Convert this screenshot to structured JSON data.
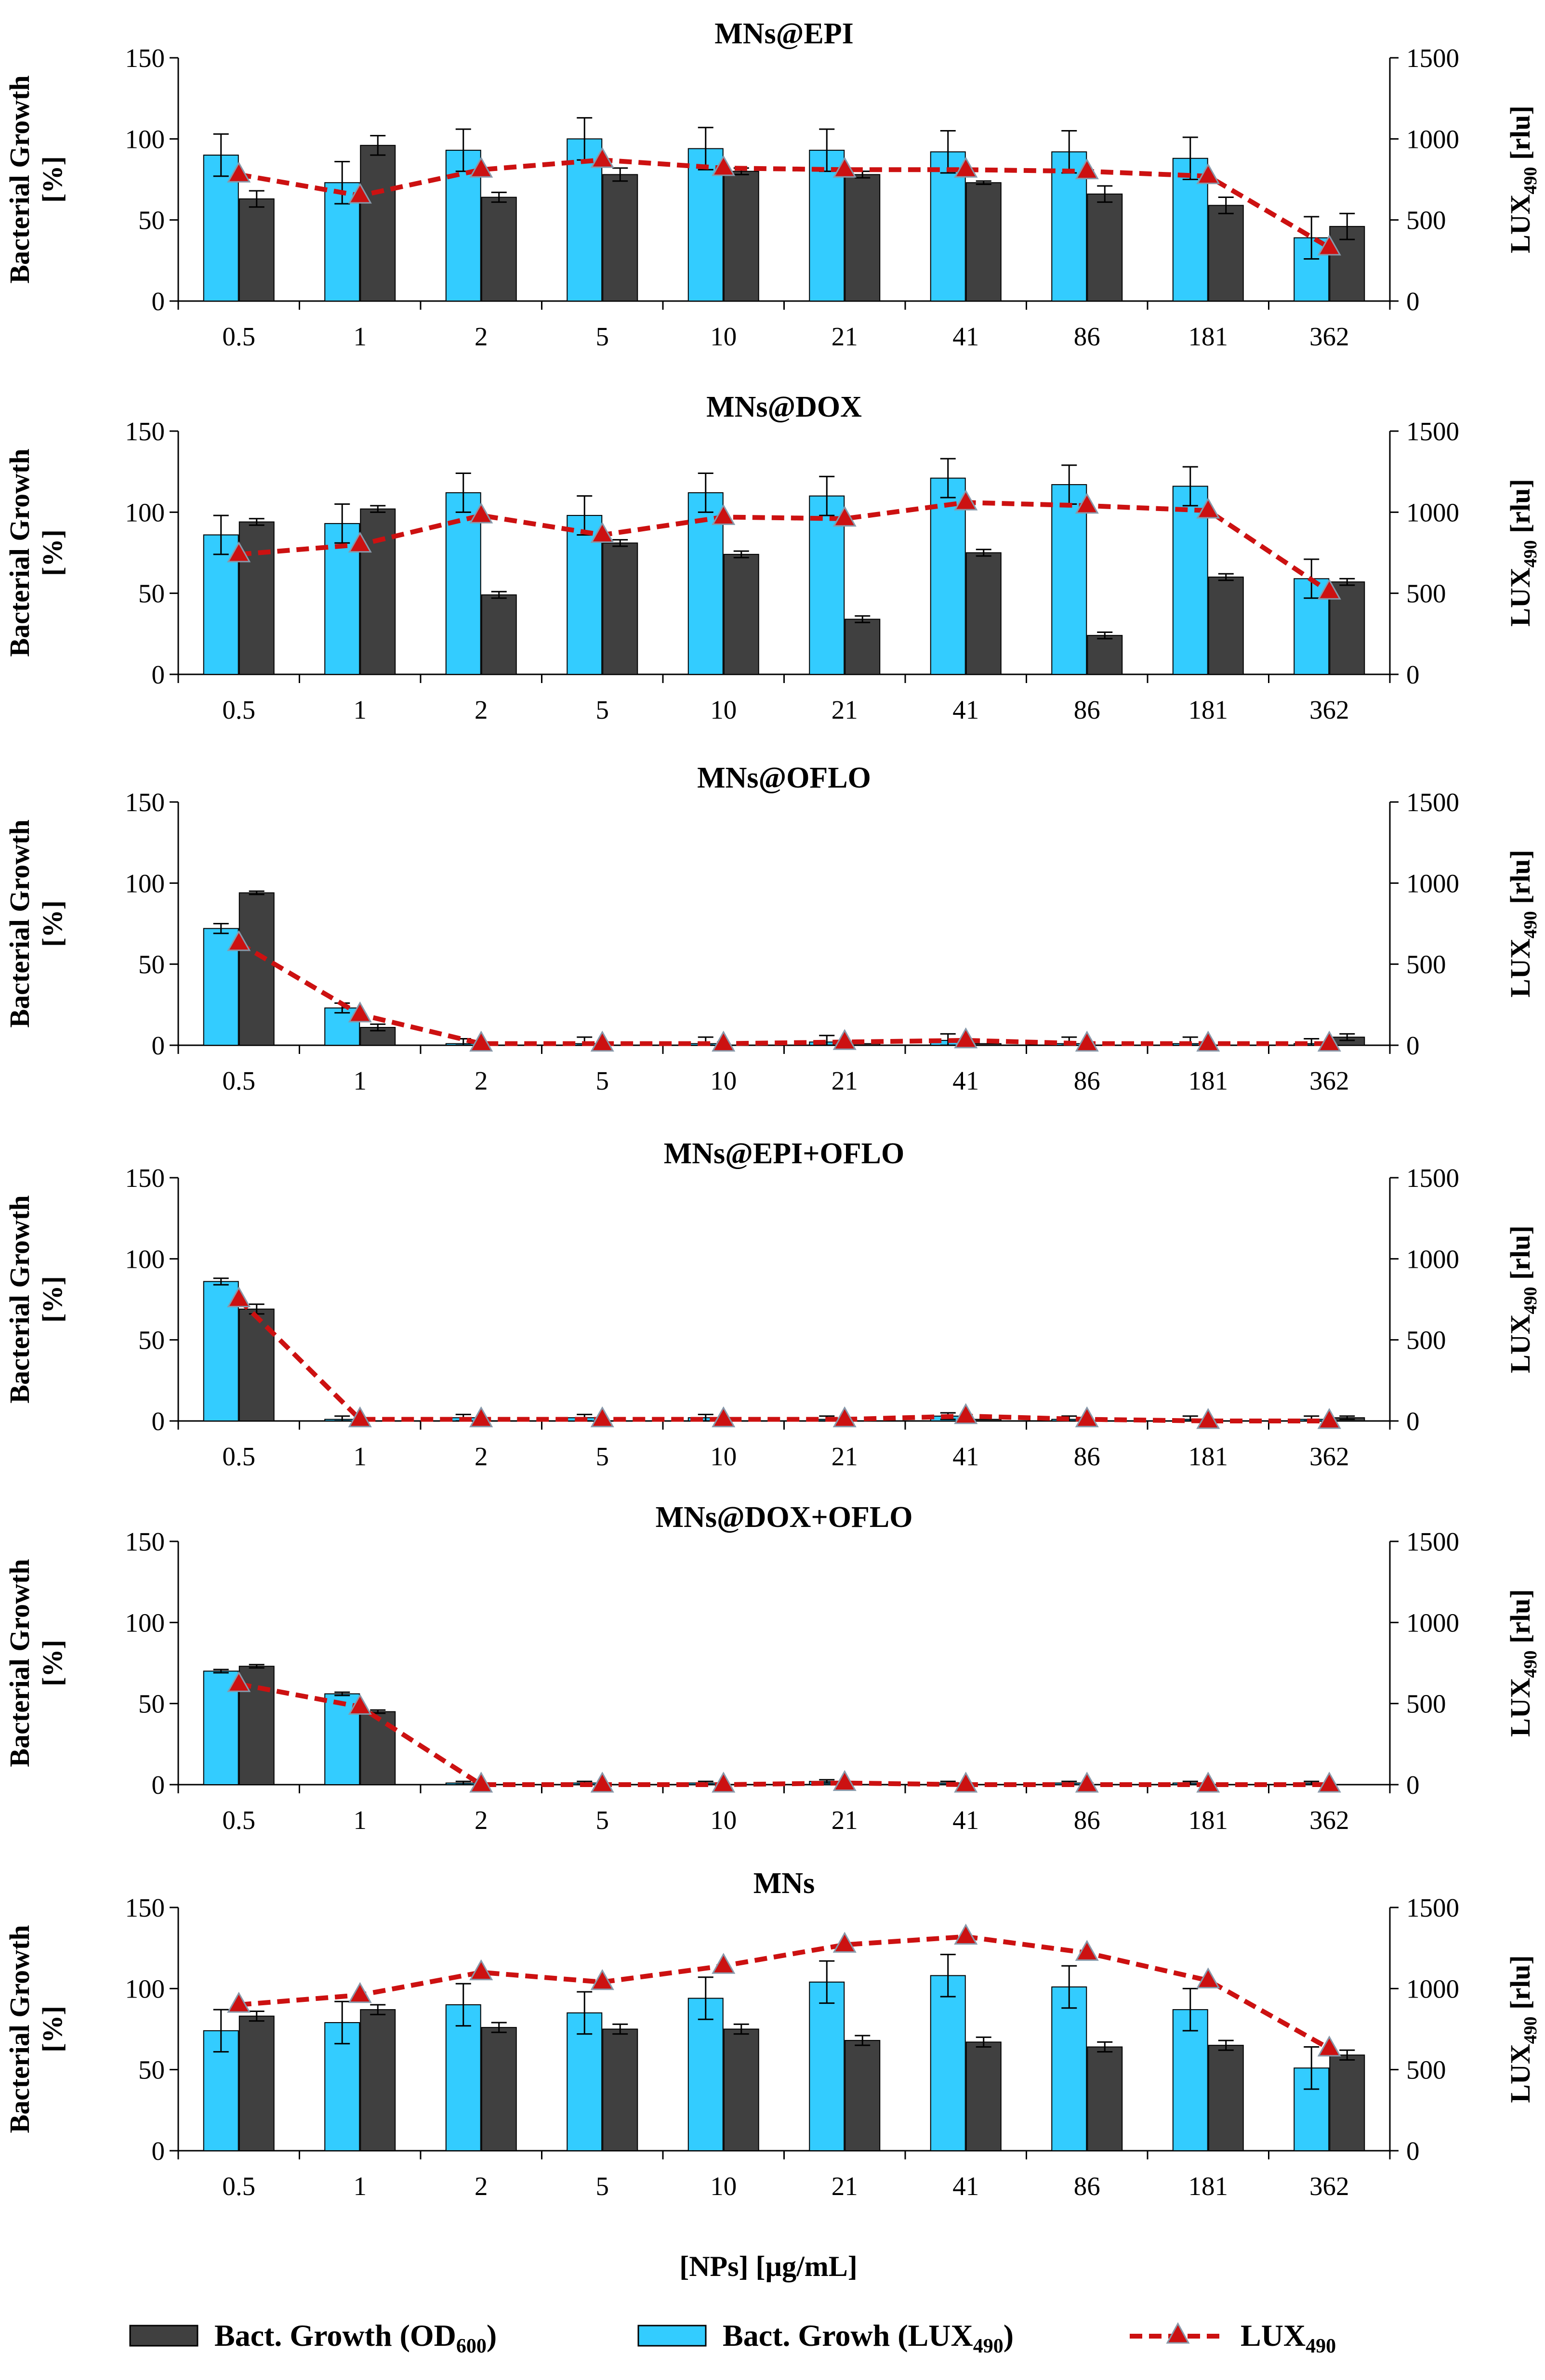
{
  "chart_data": {
    "type": "bar+line",
    "xlabel": "[NPs] [µg/mL]",
    "categories": [
      "0.5",
      "1",
      "2",
      "5",
      "10",
      "21",
      "41",
      "86",
      "181",
      "362"
    ],
    "left_axis": {
      "title": "Bacterial Growth",
      "unit": "[%]",
      "ylim": [
        0,
        150
      ],
      "ticks": [
        0,
        50,
        100,
        150
      ]
    },
    "right_axis": {
      "title_main": "LUX",
      "title_sub": "490",
      "unit": "[rlu]",
      "ylim": [
        0,
        1500
      ],
      "ticks": [
        0,
        500,
        1000,
        1500
      ]
    },
    "legend": [
      {
        "main": "Bact. Growth (OD",
        "sub": "600",
        "end": ")",
        "color": "#404040",
        "kind": "bar"
      },
      {
        "main": "Bact. Growh (LUX",
        "sub": "490",
        "end": ")",
        "color": "#33ccff",
        "kind": "bar"
      },
      {
        "main": "LUX",
        "sub": "490",
        "end": "",
        "color": "#cc1111",
        "kind": "line"
      }
    ],
    "colors": {
      "od": "#404040",
      "lux_bar": "#33ccff",
      "line": "#cc1111",
      "marker": "#cc1111",
      "marker_edge": "#8899aa"
    },
    "panels": [
      {
        "title": "MNs@EPI",
        "lux_bar": [
          90,
          73,
          93,
          100,
          94,
          93,
          92,
          92,
          88,
          39
        ],
        "lux_bar_err": [
          13,
          13,
          13,
          13,
          13,
          13,
          13,
          13,
          13,
          13
        ],
        "od": [
          63,
          96,
          64,
          78,
          80,
          78,
          73,
          66,
          59,
          46
        ],
        "od_err": [
          5,
          6,
          3,
          4,
          2,
          2,
          1,
          5,
          5,
          8
        ],
        "lux_line": [
          780,
          650,
          810,
          870,
          820,
          810,
          810,
          800,
          770,
          330
        ]
      },
      {
        "title": "MNs@DOX",
        "lux_bar": [
          86,
          93,
          112,
          98,
          112,
          110,
          121,
          117,
          116,
          59
        ],
        "lux_bar_err": [
          12,
          12,
          12,
          12,
          12,
          12,
          12,
          12,
          12,
          12
        ],
        "od": [
          94,
          102,
          49,
          81,
          74,
          34,
          75,
          24,
          60,
          57
        ],
        "od_err": [
          2,
          2,
          2,
          2,
          2,
          2,
          2,
          2,
          2,
          2
        ],
        "lux_line": [
          740,
          800,
          980,
          860,
          970,
          960,
          1060,
          1040,
          1010,
          510
        ]
      },
      {
        "title": "MNs@OFLO",
        "lux_bar": [
          72,
          23,
          1,
          1,
          1,
          2,
          3,
          1,
          1,
          1
        ],
        "lux_bar_err": [
          3,
          3,
          3,
          4,
          4,
          4,
          4,
          4,
          4,
          3
        ],
        "od": [
          94,
          11,
          0,
          0,
          0,
          1,
          1,
          0,
          0,
          5
        ],
        "od_err": [
          1,
          2,
          0,
          0,
          0,
          0,
          0,
          0,
          0,
          2
        ],
        "lux_line": [
          630,
          190,
          10,
          10,
          10,
          20,
          30,
          10,
          10,
          10
        ]
      },
      {
        "title": "MNs@EPI+OFLO",
        "lux_bar": [
          86,
          1,
          2,
          2,
          2,
          1,
          3,
          1,
          1,
          1
        ],
        "lux_bar_err": [
          2,
          2,
          2,
          2,
          2,
          2,
          2,
          2,
          2,
          2
        ],
        "od": [
          69,
          0,
          0,
          0,
          0,
          0,
          1,
          0,
          0,
          2
        ],
        "od_err": [
          3,
          0,
          0,
          0,
          0,
          0,
          0,
          0,
          0,
          1
        ],
        "lux_line": [
          750,
          10,
          10,
          10,
          10,
          10,
          30,
          10,
          0,
          0
        ]
      },
      {
        "title": "MNs@DOX+OFLO",
        "lux_bar": [
          70,
          56,
          1,
          1,
          1,
          2,
          1,
          1,
          1,
          1
        ],
        "lux_bar_err": [
          1,
          1,
          1,
          1,
          1,
          1,
          1,
          1,
          1,
          1
        ],
        "od": [
          73,
          45,
          0,
          0,
          0,
          0,
          0,
          0,
          0,
          0
        ],
        "od_err": [
          1,
          1,
          0,
          0,
          0,
          0,
          0,
          0,
          0,
          0
        ],
        "lux_line": [
          620,
          480,
          0,
          0,
          0,
          10,
          0,
          0,
          0,
          0
        ]
      },
      {
        "title": "MNs",
        "lux_bar": [
          74,
          79,
          90,
          85,
          94,
          104,
          108,
          101,
          87,
          51
        ],
        "lux_bar_err": [
          13,
          13,
          13,
          13,
          13,
          13,
          13,
          13,
          13,
          13
        ],
        "od": [
          83,
          87,
          76,
          75,
          75,
          68,
          67,
          64,
          65,
          59
        ],
        "od_err": [
          3,
          3,
          3,
          3,
          3,
          3,
          3,
          3,
          3,
          3
        ],
        "lux_line": [
          900,
          960,
          1100,
          1040,
          1140,
          1270,
          1320,
          1220,
          1050,
          630
        ]
      }
    ]
  }
}
